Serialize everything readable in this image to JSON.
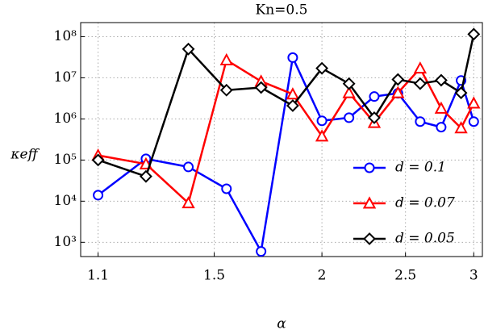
{
  "chart_data": {
    "type": "line",
    "title": "Kn=0.5",
    "xlabel": "α",
    "ylabel": "κeff",
    "x": [
      1.1,
      1.25,
      1.4,
      1.55,
      1.7,
      1.85,
      2.0,
      2.15,
      2.3,
      2.45,
      2.6,
      2.75,
      2.9,
      3.0
    ],
    "series": [
      {
        "name": "d = 0.1",
        "color": "#0000ff",
        "marker": "circle",
        "values": [
          14000,
          107000,
          68000,
          20000,
          600,
          31000000,
          900000,
          1070000,
          3500000,
          4200000,
          860000,
          630000,
          8600000,
          860000
        ]
      },
      {
        "name": "d = 0.07",
        "color": "#ff0000",
        "marker": "triangle",
        "values": [
          130000,
          80000,
          9000,
          27000000,
          8200000,
          4000000,
          380000,
          4300000,
          810000,
          4300000,
          17000000,
          1800000,
          600000,
          2400000
        ]
      },
      {
        "name": "d = 0.05",
        "color": "#000000",
        "marker": "diamond",
        "values": [
          100000,
          40000,
          50000000,
          5000000,
          5800000,
          2100000,
          17000000,
          7200000,
          1070000,
          9100000,
          7200000,
          8700000,
          4300000,
          115000000
        ]
      }
    ],
    "xscale": "log",
    "yscale": "log",
    "xlim": [
      1.05,
      3.07
    ],
    "ylim": [
      450,
      220000000
    ],
    "xticks": [
      1.1,
      1.5,
      2,
      2.5,
      3
    ],
    "yticks": [
      {
        "value": 1000,
        "label": "10³"
      },
      {
        "value": 10000,
        "label": "10⁴"
      },
      {
        "value": 100000,
        "label": "10⁵"
      },
      {
        "value": 1000000,
        "label": "10⁶"
      },
      {
        "value": 10000000,
        "label": "10⁷"
      },
      {
        "value": 100000000,
        "label": "10⁸"
      }
    ],
    "grid": true,
    "legend": "lower right"
  }
}
